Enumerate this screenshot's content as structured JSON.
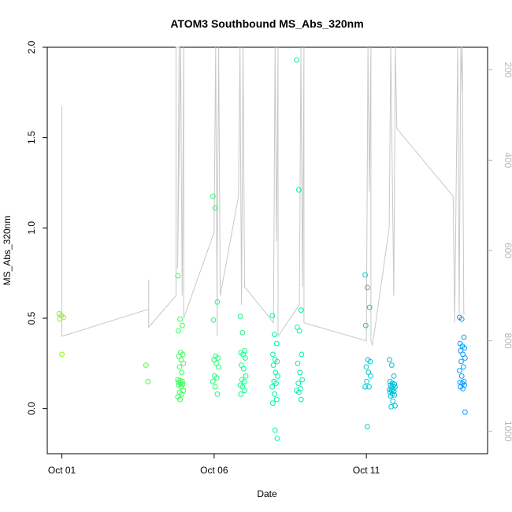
{
  "chart_data": {
    "type": "scatter",
    "title": "ATOM3 Southbound MS_Abs_320nm",
    "xlabel": "Date",
    "ylabel": "MS_Abs_320nm",
    "x_ticks": [
      "Oct 01",
      "Oct 06",
      "Oct 11"
    ],
    "y_ticks": [
      "0.0",
      "0.5",
      "1.0",
      "1.5",
      "2.0"
    ],
    "ylim": [
      -0.25,
      2.0
    ],
    "xlim_days": [
      0.52,
      14.98
    ],
    "y2_ticks": [
      "200",
      "400",
      "600",
      "800",
      "1000"
    ],
    "y2lim": [
      1050,
      150
    ],
    "y2_reversed": true,
    "grid": false,
    "colors": {
      "start": "#84ff00",
      "mid": "#00ff95",
      "end": "#009bff",
      "pressure_line": "#c8c8c8",
      "right_axis": "#b8b8b8"
    },
    "scatter_groups": [
      {
        "day": 1.0,
        "values": [
          0.525,
          0.515,
          0.505,
          0.495,
          0.3
        ]
      },
      {
        "day": 3.85,
        "values": [
          0.24,
          0.15
        ]
      },
      {
        "day": 4.9,
        "values": [
          0.735,
          0.495,
          0.46,
          0.43,
          0.31,
          0.3,
          0.29,
          0.27,
          0.25,
          0.23,
          0.2,
          0.16,
          0.155,
          0.15,
          0.145,
          0.14,
          0.135,
          0.13,
          0.12,
          0.1,
          0.09,
          0.08,
          0.065,
          0.05
        ]
      },
      {
        "day": 6.05,
        "values": [
          1.175,
          1.11,
          0.59,
          0.49,
          0.29,
          0.28,
          0.27,
          0.25,
          0.23,
          0.18,
          0.17,
          0.15,
          0.12,
          0.08
        ]
      },
      {
        "day": 6.95,
        "values": [
          0.51,
          0.42,
          0.32,
          0.31,
          0.3,
          0.28,
          0.24,
          0.22,
          0.18,
          0.16,
          0.15,
          0.13,
          0.12,
          0.1,
          0.08
        ]
      },
      {
        "day": 8.0,
        "values": [
          0.515,
          0.41,
          0.36,
          0.3,
          0.27,
          0.26,
          0.24,
          0.2,
          0.18,
          0.15,
          0.14,
          0.12,
          0.08,
          0.05,
          0.03,
          -0.12,
          -0.165
        ]
      },
      {
        "day": 8.8,
        "values": [
          1.93,
          1.21,
          0.545,
          0.45,
          0.43,
          0.3,
          0.25,
          0.2,
          0.16,
          0.14,
          0.11,
          0.1,
          0.09,
          0.05
        ]
      },
      {
        "day": 11.05,
        "values": [
          0.74,
          0.67,
          0.56,
          0.46,
          0.27,
          0.26,
          0.23,
          0.2,
          0.18,
          0.15,
          0.12,
          0.12,
          -0.1
        ]
      },
      {
        "day": 11.85,
        "values": [
          0.27,
          0.24,
          0.18,
          0.15,
          0.14,
          0.135,
          0.13,
          0.125,
          0.12,
          0.115,
          0.11,
          0.105,
          0.1,
          0.095,
          0.09,
          0.08,
          0.075,
          0.07,
          0.04,
          0.015,
          0.01
        ]
      },
      {
        "day": 14.15,
        "values": [
          0.505,
          0.495,
          0.395,
          0.36,
          0.345,
          0.335,
          0.32,
          0.3,
          0.28,
          0.26,
          0.23,
          0.21,
          0.18,
          0.15,
          0.145,
          0.14,
          0.13,
          0.12,
          0.11,
          -0.02
        ]
      }
    ],
    "pressure_line": [
      [
        1.0,
        340
      ],
      [
        1.0,
        280
      ],
      [
        1.0,
        335
      ],
      [
        1.0,
        790
      ],
      [
        3.85,
        730
      ],
      [
        3.85,
        665
      ],
      [
        3.85,
        770
      ],
      [
        4.75,
        700
      ],
      [
        4.75,
        150
      ],
      [
        4.85,
        150
      ],
      [
        4.8,
        640
      ],
      [
        4.9,
        150
      ],
      [
        4.95,
        700
      ],
      [
        5.0,
        150
      ],
      [
        5.0,
        750
      ],
      [
        6.0,
        560
      ],
      [
        6.05,
        150
      ],
      [
        6.1,
        790
      ],
      [
        6.1,
        640
      ],
      [
        6.15,
        150
      ],
      [
        6.2,
        700
      ],
      [
        6.8,
        480
      ],
      [
        6.85,
        150
      ],
      [
        6.9,
        720
      ],
      [
        6.95,
        150
      ],
      [
        7.0,
        680
      ],
      [
        7.95,
        760
      ],
      [
        8.0,
        150
      ],
      [
        8.05,
        580
      ],
      [
        8.1,
        150
      ],
      [
        8.1,
        790
      ],
      [
        8.8,
        720
      ],
      [
        8.85,
        150
      ],
      [
        8.9,
        680
      ],
      [
        8.95,
        150
      ],
      [
        8.95,
        760
      ],
      [
        11.0,
        800
      ],
      [
        11.05,
        150
      ],
      [
        11.1,
        470
      ],
      [
        11.15,
        150
      ],
      [
        11.15,
        800
      ],
      [
        11.2,
        810
      ],
      [
        11.75,
        550
      ],
      [
        11.8,
        150
      ],
      [
        11.9,
        700
      ],
      [
        11.95,
        150
      ],
      [
        12.0,
        330
      ],
      [
        13.85,
        480
      ],
      [
        13.9,
        760
      ],
      [
        14.0,
        150
      ],
      [
        14.05,
        740
      ],
      [
        14.1,
        150
      ],
      [
        14.15,
        250
      ],
      [
        14.15,
        150
      ],
      [
        14.2,
        740
      ],
      [
        14.25,
        740
      ]
    ]
  }
}
